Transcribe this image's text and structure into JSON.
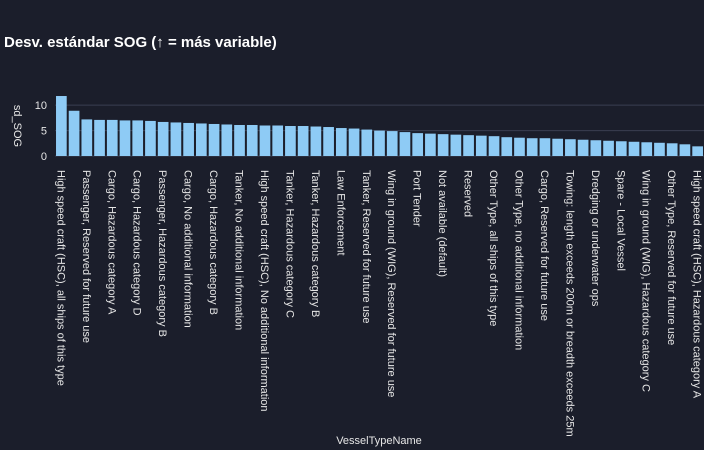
{
  "chart_data": {
    "type": "bar",
    "title": "Desv. estándar SOG (↑ = más variable)",
    "y_label": "sd_SOG",
    "x_label": "VesselTypeName",
    "color": "#8ecbf5",
    "grid": true,
    "ylim": [
      0,
      12
    ],
    "yticks": [
      0,
      5,
      10
    ],
    "categories": [
      "High speed craft (HSC), all ships of this type",
      null,
      "Passenger, Reserved for future use",
      null,
      "Cargo, Hazardous category A",
      null,
      "Cargo, Hazardous category D",
      null,
      "Passenger, Hazardous category B",
      null,
      "Cargo, No additional information",
      null,
      "Cargo, Hazardous category B",
      null,
      "Tanker, No additional information",
      null,
      "High speed craft (HSC), No additional information",
      null,
      "Tanker, Hazardous category C",
      null,
      "Tanker, Hazardous category B",
      null,
      "Law Enforcement",
      null,
      "Tanker, Reserved for future use",
      null,
      "Wing in ground (WIG), Reserved for future use",
      null,
      "Port Tender",
      null,
      "Not available (default)",
      null,
      "Reserved",
      null,
      "Other Type, all ships of this type",
      null,
      "Other Type, no additional information",
      null,
      "Cargo, Reserved for future use",
      null,
      "Towing: length exceeds 200m or breadth exceeds 25m",
      null,
      "Dredging or underwater ops",
      null,
      "Spare - Local Vessel",
      null,
      "Wing in ground (WIG), Hazardous category C",
      null,
      "Other Type, Reserved for future use",
      null,
      "High speed craft (HSC), Hazardous category A"
    ],
    "values": [
      11.8,
      8.9,
      7.2,
      7.1,
      7.1,
      7.0,
      7.0,
      6.9,
      6.7,
      6.6,
      6.5,
      6.4,
      6.3,
      6.2,
      6.1,
      6.1,
      6.0,
      6.0,
      5.9,
      5.9,
      5.8,
      5.7,
      5.5,
      5.4,
      5.2,
      5.0,
      4.9,
      4.7,
      4.5,
      4.4,
      4.3,
      4.2,
      4.1,
      4.0,
      3.9,
      3.7,
      3.6,
      3.5,
      3.5,
      3.4,
      3.3,
      3.2,
      3.1,
      3.0,
      2.9,
      2.8,
      2.7,
      2.6,
      2.5,
      2.3,
      1.9
    ]
  }
}
